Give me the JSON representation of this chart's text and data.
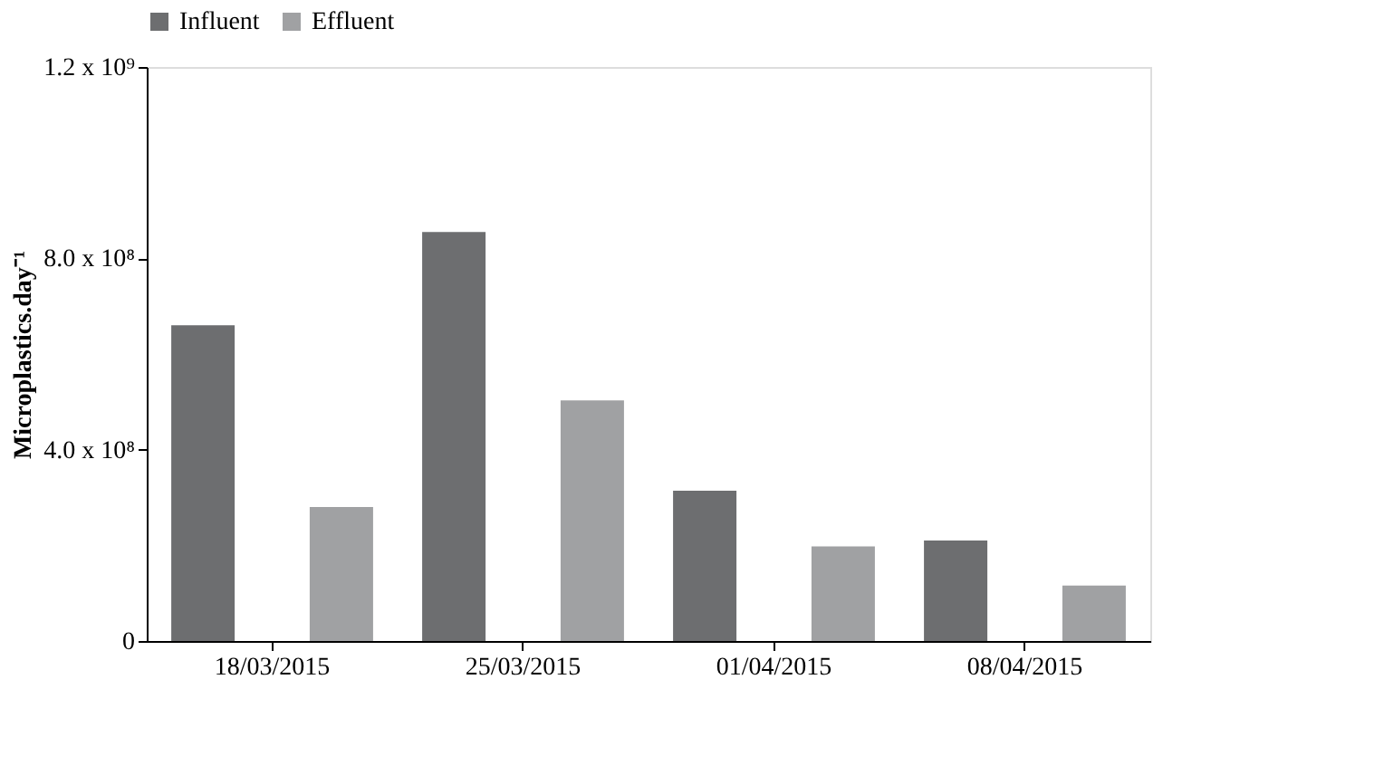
{
  "chart_data": {
    "type": "bar",
    "ylabel": "Microplastics.day⁻¹",
    "categories": [
      "18/03/2015",
      "25/03/2015",
      "01/04/2015",
      "08/04/2015"
    ],
    "series": [
      {
        "name": "Influent",
        "color": "#6d6e70",
        "values": [
          660000000,
          855000000,
          314000000,
          210000000
        ]
      },
      {
        "name": "Effluent",
        "color": "#a0a1a3",
        "values": [
          280000000,
          503000000,
          198000000,
          116000000
        ]
      }
    ],
    "ylim": [
      0,
      1200000000
    ],
    "yticks": [
      {
        "value": 0,
        "label": "0"
      },
      {
        "value": 400000000,
        "label": "4.0 x 10⁸"
      },
      {
        "value": 800000000,
        "label": "8.0 x 10⁸"
      },
      {
        "value": 1200000000,
        "label": "1.2 x 10⁹"
      }
    ],
    "grid": false,
    "legend": "top"
  }
}
